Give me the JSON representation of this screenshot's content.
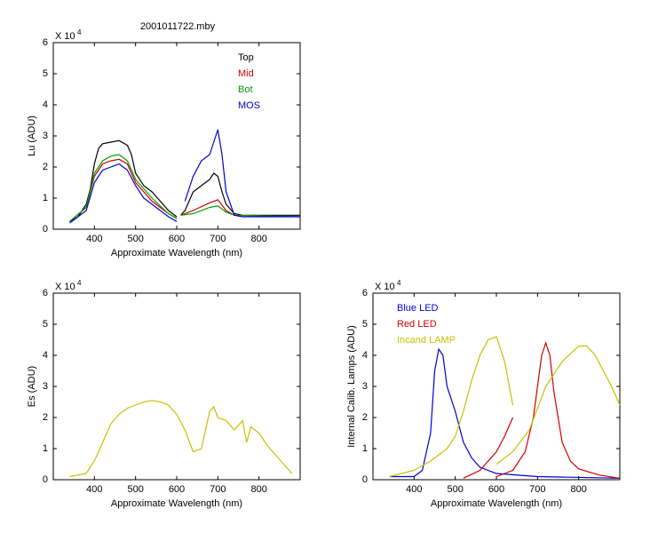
{
  "chart_data": [
    {
      "type": "line",
      "title": "2001011722.mby",
      "xlabel": "Approximate Wavelength (nm)",
      "ylabel": "Lu (ADU)",
      "y_scale_text": "X 10",
      "y_scale_exponent": "4",
      "xlim": [
        300,
        900
      ],
      "ylim": [
        0,
        6
      ],
      "xticks": [
        400,
        500,
        600,
        700,
        800
      ],
      "yticks": [
        0,
        1,
        2,
        3,
        4,
        5,
        6
      ],
      "legend": "upper right",
      "series": [
        {
          "name": "Top",
          "color": "#000000",
          "x": [
            340,
            360,
            380,
            390,
            400,
            410,
            420,
            440,
            460,
            480,
            490,
            500,
            520,
            540,
            560,
            580,
            600,
            null,
            610,
            620,
            630,
            640,
            660,
            680,
            690,
            700,
            710,
            720,
            740,
            760,
            800,
            900
          ],
          "values": [
            0.25,
            0.4,
            0.8,
            1.3,
            2.1,
            2.6,
            2.75,
            2.8,
            2.85,
            2.7,
            2.4,
            1.8,
            1.4,
            1.2,
            0.9,
            0.6,
            0.4,
            null,
            0.45,
            0.6,
            0.9,
            1.2,
            1.4,
            1.6,
            1.8,
            1.7,
            1.2,
            0.8,
            0.5,
            0.45,
            0.45,
            0.45
          ]
        },
        {
          "name": "Mid",
          "color": "#d00000",
          "x": [
            340,
            380,
            400,
            420,
            440,
            460,
            480,
            500,
            540,
            580,
            600,
            null,
            610,
            640,
            680,
            700,
            720,
            740,
            900
          ],
          "values": [
            0.25,
            0.7,
            1.7,
            2.1,
            2.2,
            2.25,
            2.1,
            1.5,
            0.9,
            0.5,
            0.35,
            null,
            0.45,
            0.6,
            0.85,
            0.95,
            0.6,
            0.45,
            0.4
          ]
        },
        {
          "name": "Bot",
          "color": "#00a000",
          "x": [
            340,
            380,
            400,
            420,
            440,
            460,
            480,
            500,
            540,
            580,
            600,
            null,
            610,
            640,
            680,
            700,
            720,
            740,
            900
          ],
          "values": [
            0.25,
            0.7,
            1.8,
            2.2,
            2.35,
            2.4,
            2.2,
            1.6,
            1.0,
            0.5,
            0.35,
            null,
            0.45,
            0.5,
            0.7,
            0.75,
            0.55,
            0.45,
            0.4
          ]
        },
        {
          "name": "MOS",
          "color": "#0000d0",
          "x": [
            340,
            380,
            400,
            420,
            440,
            460,
            480,
            500,
            520,
            540,
            560,
            580,
            600,
            null,
            620,
            640,
            660,
            680,
            690,
            700,
            710,
            720,
            740,
            760,
            900
          ],
          "values": [
            0.2,
            0.6,
            1.5,
            1.9,
            2.0,
            2.1,
            1.9,
            1.4,
            1.0,
            0.8,
            0.6,
            0.4,
            0.25,
            null,
            0.9,
            1.7,
            2.2,
            2.4,
            2.8,
            3.2,
            2.4,
            1.2,
            0.45,
            0.4,
            0.4
          ]
        }
      ]
    },
    {
      "type": "line",
      "xlabel": "Approximate Wavelength (nm)",
      "ylabel": "Es  (ADU)",
      "y_scale_text": "X 10",
      "y_scale_exponent": "4",
      "xlim": [
        300,
        900
      ],
      "ylim": [
        0,
        6
      ],
      "xticks": [
        400,
        500,
        600,
        700,
        800
      ],
      "yticks": [
        0,
        1,
        2,
        3,
        4,
        5,
        6
      ],
      "series": [
        {
          "color": "#c8c000",
          "x": [
            340,
            380,
            400,
            420,
            440,
            460,
            480,
            500,
            520,
            540,
            560,
            580,
            600,
            620,
            640,
            660,
            680,
            690,
            700,
            720,
            740,
            760,
            770,
            780,
            800,
            820,
            840,
            860,
            880
          ],
          "values": [
            0.1,
            0.2,
            0.6,
            1.2,
            1.8,
            2.1,
            2.3,
            2.4,
            2.5,
            2.55,
            2.5,
            2.4,
            2.1,
            1.6,
            0.9,
            1.0,
            2.2,
            2.35,
            2.0,
            1.9,
            1.6,
            1.9,
            1.2,
            1.7,
            1.5,
            1.1,
            0.8,
            0.5,
            0.2
          ]
        }
      ]
    },
    {
      "type": "line",
      "xlabel": "Approximate Wavelength (nm)",
      "ylabel": "Internal Calib. Lamps (ADU)",
      "y_scale_text": "X 10",
      "y_scale_exponent": "4",
      "xlim": [
        300,
        900
      ],
      "ylim": [
        0,
        6
      ],
      "xticks": [
        400,
        500,
        600,
        700,
        800
      ],
      "yticks": [
        0,
        1,
        2,
        3,
        4,
        5,
        6
      ],
      "legend": "upper left",
      "series": [
        {
          "name": "Blue LED",
          "color": "#0000d0",
          "x": [
            340,
            400,
            420,
            440,
            450,
            460,
            470,
            480,
            500,
            520,
            540,
            560,
            600,
            700,
            900
          ],
          "values": [
            0.1,
            0.1,
            0.3,
            1.5,
            3.5,
            4.2,
            4.0,
            3.0,
            2.2,
            1.2,
            0.7,
            0.4,
            0.2,
            0.1,
            0.05
          ]
        },
        {
          "name": "Red LED",
          "color": "#d00000",
          "x": [
            520,
            560,
            600,
            620,
            640,
            null,
            600,
            640,
            670,
            690,
            700,
            710,
            720,
            730,
            740,
            760,
            780,
            800,
            850,
            900
          ],
          "values": [
            0.05,
            0.3,
            0.9,
            1.4,
            2.0,
            null,
            0.1,
            0.3,
            0.9,
            2.0,
            3.0,
            4.0,
            4.4,
            4.0,
            2.8,
            1.2,
            0.6,
            0.35,
            0.15,
            0.05
          ]
        },
        {
          "name": "Incand LAMP",
          "color": "#c8c000",
          "x": [
            340,
            400,
            440,
            480,
            500,
            520,
            540,
            560,
            580,
            600,
            620,
            640,
            null,
            600,
            640,
            680,
            720,
            760,
            800,
            820,
            840,
            860,
            880,
            900
          ],
          "values": [
            0.1,
            0.3,
            0.6,
            1.0,
            1.4,
            2.2,
            3.2,
            4.0,
            4.5,
            4.6,
            3.8,
            2.4,
            null,
            0.5,
            0.9,
            1.6,
            3.0,
            3.8,
            4.3,
            4.3,
            4.0,
            3.5,
            3.0,
            2.4
          ]
        }
      ]
    }
  ]
}
